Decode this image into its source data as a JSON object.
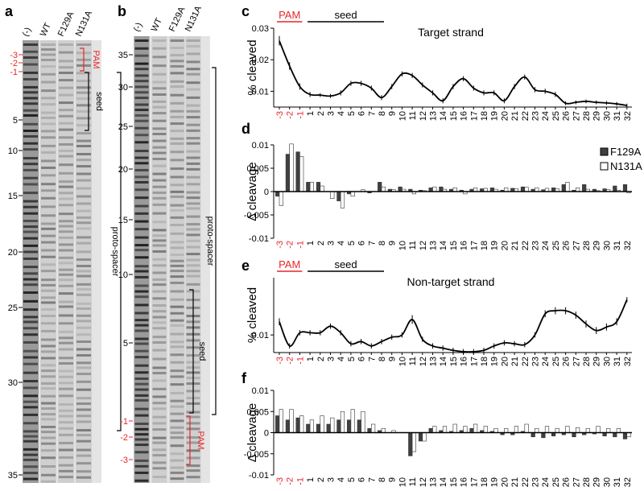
{
  "gels": [
    {
      "letter": "a",
      "lanes": [
        "(-)",
        "WT",
        "F129A",
        "N131A"
      ],
      "markers": [
        "-3",
        "-2",
        "-1",
        "5",
        "10",
        "15",
        "20",
        "25",
        "30",
        "35"
      ],
      "brackets": [
        "PAM",
        "seed",
        "proto-spacer"
      ]
    },
    {
      "letter": "b",
      "lanes": [
        "(-)",
        "WT",
        "F129A",
        "N131A"
      ],
      "markers": [
        "35",
        "30",
        "25",
        "20",
        "15",
        "10",
        "5",
        "-1",
        "-2",
        "-3"
      ],
      "brackets": [
        "proto-spacer",
        "seed",
        "PAM"
      ]
    }
  ],
  "chart_data": [
    {
      "panel": "c",
      "type": "line",
      "title": "Target strand",
      "ylabel": "% cleaved",
      "annotations": [
        "PAM",
        "seed"
      ],
      "categories": [
        "-3",
        "-2",
        "-1",
        "1",
        "2",
        "3",
        "4",
        "5",
        "6",
        "7",
        "8",
        "9",
        "10",
        "11",
        "12",
        "13",
        "14",
        "15",
        "16",
        "17",
        "18",
        "19",
        "20",
        "21",
        "22",
        "23",
        "24",
        "25",
        "26",
        "27",
        "28",
        "29",
        "30",
        "31",
        "32"
      ],
      "values": [
        0.026,
        0.018,
        0.0115,
        0.009,
        0.0088,
        0.0085,
        0.0095,
        0.0125,
        0.0125,
        0.011,
        0.008,
        0.0115,
        0.0155,
        0.015,
        0.012,
        0.0095,
        0.007,
        0.0115,
        0.014,
        0.011,
        0.0095,
        0.0095,
        0.007,
        0.0115,
        0.0145,
        0.0105,
        0.01,
        0.009,
        0.0062,
        0.0065,
        0.0068,
        0.0065,
        0.0063,
        0.006,
        0.0055
      ],
      "errors": [
        0.0015,
        0.0012,
        0.001,
        0.0008,
        0.0006,
        0.0006,
        0.0008,
        0.0008,
        0.0008,
        0.0008,
        0.0008,
        0.0008,
        0.0008,
        0.0008,
        0.0008,
        0.0008,
        0.0008,
        0.0008,
        0.0008,
        0.0008,
        0.0008,
        0.0008,
        0.0008,
        0.0008,
        0.0008,
        0.0008,
        0.0008,
        0.0008,
        0.0006,
        0.0006,
        0.0006,
        0.0006,
        0.0006,
        0.0006,
        0.0006
      ],
      "color": "#000000",
      "ylim": [
        0.005,
        0.03
      ],
      "yticks": [
        0.01,
        0.02,
        0.03
      ]
    },
    {
      "panel": "d",
      "type": "bar",
      "ylabel": "Δ cleavage",
      "legend": "upper right",
      "categories": [
        "-3",
        "-2",
        "-1",
        "1",
        "2",
        "3",
        "4",
        "5",
        "6",
        "7",
        "8",
        "9",
        "10",
        "11",
        "12",
        "13",
        "14",
        "15",
        "16",
        "17",
        "18",
        "19",
        "20",
        "21",
        "22",
        "23",
        "24",
        "25",
        "26",
        "27",
        "28",
        "29",
        "30",
        "31",
        "32"
      ],
      "series": [
        {
          "name": "F129A",
          "color": "#404040",
          "values": [
            -0.001,
            0.008,
            0.0085,
            0.002,
            0.002,
            0,
            -0.002,
            -0.0005,
            0,
            -0.0003,
            0.002,
            0.0005,
            0.001,
            0.0005,
            0.0003,
            0.0008,
            0.001,
            0.0005,
            0.0003,
            0.0005,
            0.0006,
            0.0008,
            0.0003,
            0.0007,
            0.001,
            0.0005,
            0.0004,
            0.0008,
            0.0015,
            0.0003,
            0.0015,
            0.0005,
            0.0006,
            0.0012,
            0.0015
          ]
        },
        {
          "name": "N131A",
          "color": "#ffffff",
          "values": [
            -0.003,
            0.0102,
            0.0075,
            0.002,
            0.0012,
            -0.0015,
            -0.0035,
            -0.001,
            0.0004,
            0,
            0.001,
            0.0004,
            0.0005,
            -0.0005,
            0.0002,
            0.001,
            0.0005,
            0.0008,
            -0.0005,
            0.0008,
            0.0007,
            0.0005,
            0.0008,
            0.0006,
            0.0009,
            0.0008,
            0.0007,
            0.0006,
            0.002,
            0.0008,
            0.0005,
            0.0002,
            0.0004,
            0.0003,
            -0.0003
          ]
        }
      ],
      "ylim": [
        -0.01,
        0.01
      ],
      "yticks": [
        -0.01,
        -0.005,
        0,
        0.005,
        0.01
      ]
    },
    {
      "panel": "e",
      "type": "line",
      "title": "Non-target strand",
      "ylabel": "% cleaved",
      "annotations": [
        "PAM",
        "seed"
      ],
      "categories": [
        "-3",
        "-2",
        "-1",
        "1",
        "2",
        "3",
        "4",
        "5",
        "6",
        "7",
        "8",
        "9",
        "10",
        "11",
        "12",
        "13",
        "14",
        "15",
        "16",
        "17",
        "18",
        "19",
        "20",
        "21",
        "22",
        "23",
        "24",
        "25",
        "26",
        "27",
        "28",
        "29",
        "30",
        "31",
        "32"
      ],
      "values": [
        0.013,
        0.0075,
        0.0105,
        0.0105,
        0.0105,
        0.012,
        0.0105,
        0.008,
        0.0085,
        0.0075,
        0.0085,
        0.0095,
        0.01,
        0.0135,
        0.009,
        0.0075,
        0.007,
        0.0065,
        0.0062,
        0.0062,
        0.0065,
        0.0075,
        0.0082,
        0.008,
        0.0078,
        0.01,
        0.0148,
        0.0155,
        0.0155,
        0.0145,
        0.0125,
        0.011,
        0.0118,
        0.013,
        0.018
      ],
      "errors": [
        0.0008,
        0.0006,
        0.0006,
        0.0006,
        0.0006,
        0.0006,
        0.0006,
        0.0006,
        0.0006,
        0.0006,
        0.0006,
        0.0006,
        0.0006,
        0.001,
        0.0006,
        0.0006,
        0.0006,
        0.0006,
        0.0006,
        0.0006,
        0.0006,
        0.0006,
        0.0006,
        0.0006,
        0.0006,
        0.0006,
        0.0008,
        0.0008,
        0.0008,
        0.0008,
        0.0008,
        0.0008,
        0.0008,
        0.0008,
        0.0006
      ],
      "color": "#000000",
      "ylim": [
        0.006,
        0.023
      ],
      "yticks": [
        0.01
      ]
    },
    {
      "panel": "f",
      "type": "bar",
      "ylabel": "Δ cleavage",
      "categories": [
        "-3",
        "-2",
        "-1",
        "1",
        "2",
        "3",
        "4",
        "5",
        "6",
        "7",
        "8",
        "9",
        "10",
        "11",
        "12",
        "13",
        "14",
        "15",
        "16",
        "17",
        "18",
        "19",
        "20",
        "21",
        "22",
        "23",
        "24",
        "25",
        "26",
        "27",
        "28",
        "29",
        "30",
        "31",
        "32"
      ],
      "series": [
        {
          "name": "F129A",
          "color": "#404040",
          "values": [
            0.004,
            0.003,
            0.0035,
            0.002,
            0.002,
            0.002,
            0.003,
            0.003,
            0.003,
            0.001,
            0.0005,
            0,
            0,
            -0.0055,
            -0.002,
            0.001,
            0.0005,
            0.0003,
            0.0005,
            0.001,
            0.0005,
            0.0003,
            -0.0005,
            -0.0005,
            0.0003,
            -0.001,
            -0.0012,
            -0.0008,
            -0.0005,
            -0.001,
            -0.0005,
            -0.0003,
            -0.0008,
            -0.001,
            -0.0015
          ]
        },
        {
          "name": "N131A",
          "color": "#ffffff",
          "values": [
            0.0055,
            0.0055,
            0.004,
            0.003,
            0.004,
            0.0035,
            0.005,
            0.0055,
            0.005,
            0.002,
            0.001,
            0.0005,
            0,
            -0.0045,
            -0.002,
            0.0015,
            0.0015,
            0.002,
            0.0015,
            0.002,
            0.0015,
            0.001,
            0.001,
            0.0015,
            0.002,
            0.001,
            0.0015,
            0.001,
            0.0015,
            0.0012,
            0.001,
            0.0015,
            0.001,
            0.001,
            -0.001
          ]
        }
      ],
      "ylim": [
        -0.01,
        0.01
      ],
      "yticks": [
        -0.01,
        -0.005,
        0,
        0.005,
        0.01
      ]
    }
  ]
}
